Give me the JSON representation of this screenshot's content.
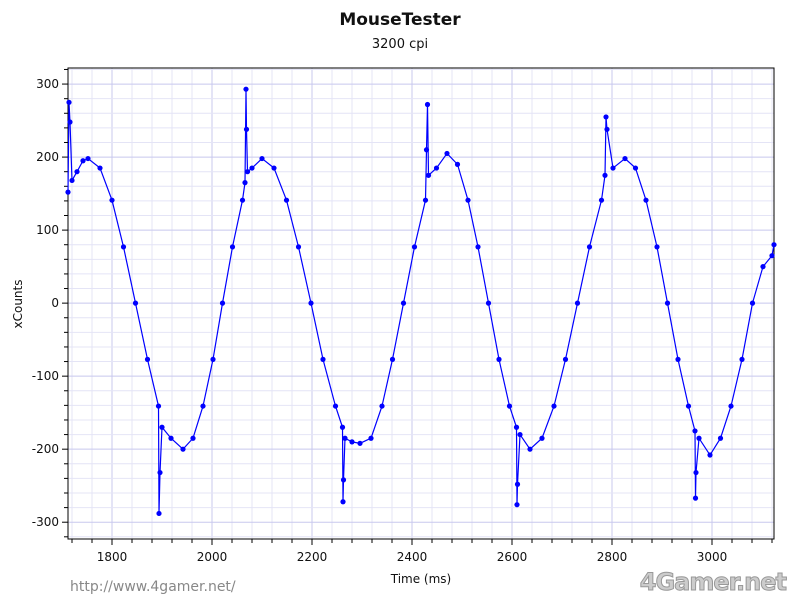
{
  "chart_data": {
    "type": "line",
    "title": "MouseTester",
    "subtitle": "3200 cpi",
    "xlabel": "Time (ms)",
    "ylabel": "xCounts",
    "xlim": [
      1712,
      3124
    ],
    "ylim": [
      -323,
      322
    ],
    "xticks": [
      1800,
      2000,
      2200,
      2400,
      2600,
      2800,
      3000
    ],
    "yticks": [
      -300,
      -200,
      -100,
      0,
      100,
      200,
      300
    ],
    "grid": true,
    "series_color": "#0000ff",
    "series": [
      {
        "name": "xCounts",
        "x": [
          1712,
          1714,
          1716,
          1720,
          1730,
          1742,
          1752,
          1776,
          1800,
          1823,
          1847,
          1871,
          1893,
          1894,
          1896,
          1900,
          1918,
          1942,
          1962,
          1982,
          2002,
          2021,
          2041,
          2061,
          2066,
          2068,
          2069,
          2071,
          2080,
          2100,
          2124,
          2149,
          2173,
          2198,
          2222,
          2247,
          2261,
          2262,
          2263,
          2266,
          2280,
          2296,
          2318,
          2340,
          2361,
          2383,
          2405,
          2427,
          2429,
          2431,
          2433,
          2449,
          2470,
          2491,
          2512,
          2532,
          2553,
          2574,
          2595,
          2609,
          2610,
          2611,
          2616,
          2636,
          2660,
          2684,
          2707,
          2731,
          2755,
          2779,
          2786,
          2788,
          2790,
          2802,
          2826,
          2847,
          2868,
          2890,
          2911,
          2932,
          2953,
          2966,
          2967,
          2968,
          2974,
          2996,
          3017,
          3038,
          3060,
          3081,
          3102,
          3120,
          3124
        ],
        "y": [
          152,
          275,
          248,
          168,
          180,
          195,
          198,
          185,
          141,
          77,
          0,
          -77,
          -141,
          -288,
          -232,
          -170,
          -185,
          -200,
          -185,
          -141,
          -77,
          0,
          77,
          141,
          165,
          293,
          238,
          180,
          185,
          198,
          185,
          141,
          77,
          0,
          -77,
          -141,
          -170,
          -272,
          -242,
          -185,
          -190,
          -192,
          -185,
          -141,
          -77,
          0,
          77,
          141,
          210,
          272,
          175,
          185,
          205,
          190,
          141,
          77,
          0,
          -77,
          -141,
          -170,
          -276,
          -248,
          -180,
          -200,
          -185,
          -141,
          -77,
          0,
          77,
          141,
          175,
          255,
          238,
          185,
          198,
          185,
          141,
          77,
          0,
          -77,
          -141,
          -175,
          -267,
          -232,
          -185,
          -208,
          -185,
          -141,
          -77,
          0,
          50,
          65,
          80
        ]
      }
    ]
  },
  "watermark": {
    "logo": "4Gamer.net",
    "url": "http://www.4gamer.net/"
  }
}
